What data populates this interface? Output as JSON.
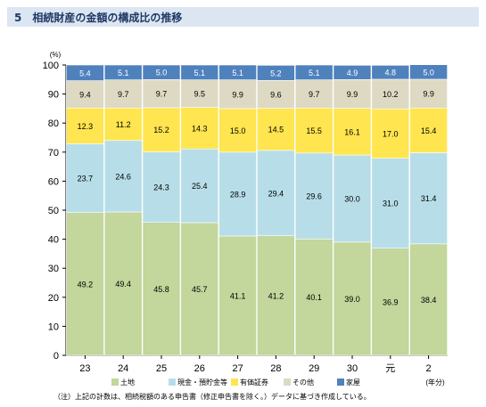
{
  "header": {
    "title": "5　相続財産の金額の構成比の推移"
  },
  "note": "（注）上記の計数は、相続税額のある申告書（修正申告書を除く。）データに基づき作成している。",
  "chart_data": {
    "type": "bar",
    "stacked": true,
    "y_unit_label": "(%)",
    "x_unit_label": "(年分)",
    "ylim": [
      0,
      100
    ],
    "yticks": [
      0,
      10,
      20,
      30,
      40,
      50,
      60,
      70,
      80,
      90,
      100
    ],
    "categories": [
      "23",
      "24",
      "25",
      "26",
      "27",
      "28",
      "29",
      "30",
      "元",
      "2"
    ],
    "series": [
      {
        "name": "土地",
        "color": "#c3d69b",
        "values": [
          49.2,
          49.4,
          45.8,
          45.7,
          41.1,
          41.2,
          40.1,
          39.0,
          36.9,
          38.4
        ]
      },
      {
        "name": "現金・預貯金等",
        "color": "#b7dee8",
        "values": [
          23.7,
          24.6,
          24.3,
          25.4,
          28.9,
          29.4,
          29.6,
          30.0,
          31.0,
          31.4
        ]
      },
      {
        "name": "有価証券",
        "color": "#ffe54f",
        "values": [
          12.3,
          11.2,
          15.2,
          14.3,
          15.0,
          14.5,
          15.5,
          16.1,
          17.0,
          15.4
        ]
      },
      {
        "name": "その他",
        "color": "#ddd9c3",
        "values": [
          9.4,
          9.7,
          9.7,
          9.5,
          9.9,
          9.6,
          9.7,
          9.9,
          10.2,
          9.9
        ]
      },
      {
        "name": "家屋",
        "color": "#4f81bd",
        "values": [
          5.4,
          5.1,
          5.0,
          5.1,
          5.1,
          5.2,
          5.1,
          4.9,
          4.8,
          5.0
        ]
      }
    ],
    "label_texts": [
      [
        "49.2",
        "49.4",
        "45.8",
        "45.7",
        "41.1",
        "41.2",
        "40.1",
        "39.0",
        "36.9",
        "38.4"
      ],
      [
        "23.7",
        "24.6",
        "24.3",
        "25.4",
        "28.9",
        "29.4",
        "29.6",
        "30.0",
        "31.0",
        "31.4"
      ],
      [
        "12.3",
        "11.2",
        "15.2",
        "14.3",
        "15.0",
        "14.5",
        "15.5",
        "16.1",
        "17.0",
        "15.4"
      ],
      [
        "9.4",
        "9.7",
        "9.7",
        "9.5",
        "9.9",
        "9.6",
        "9.7",
        "9.9",
        "10.2",
        "9.9"
      ],
      [
        "5.4",
        "5.1",
        "5.0",
        "5.1",
        "5.1",
        "5.2",
        "5.1",
        "4.9",
        "4.8",
        "5.0"
      ]
    ],
    "legend_position": "bottom",
    "grid": false
  }
}
